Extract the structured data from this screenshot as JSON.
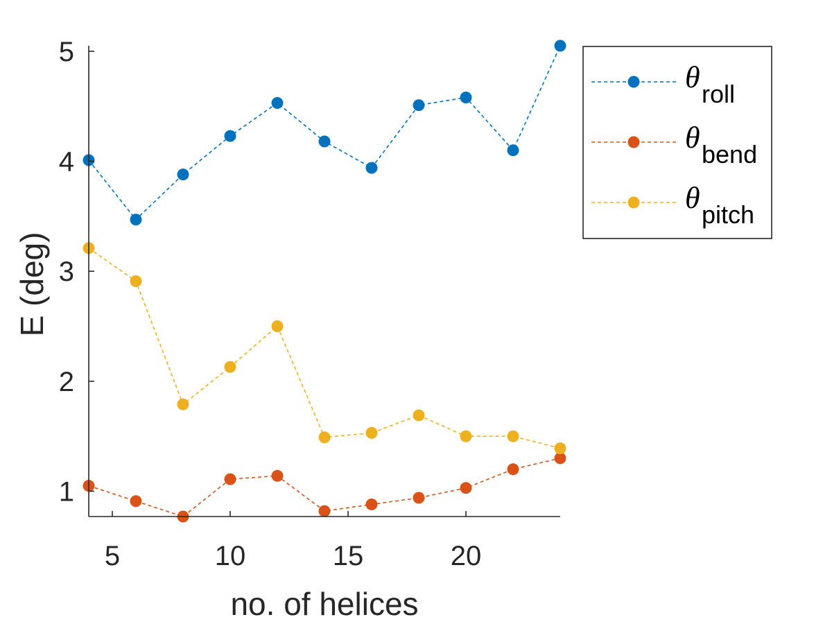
{
  "chart_data": {
    "type": "line",
    "xlabel": "no. of helices",
    "ylabel": "E (deg)",
    "xlim": [
      4,
      24
    ],
    "ylim": [
      0.77,
      5.05
    ],
    "xticks": [
      5,
      10,
      15,
      20
    ],
    "yticks": [
      1,
      2,
      3,
      4,
      5
    ],
    "grid": false,
    "legend_position": "outside-right-top",
    "line_style": "dashed",
    "marker": "filled-circle",
    "x": [
      4,
      6,
      8,
      10,
      12,
      14,
      16,
      18,
      20,
      22,
      24
    ],
    "series": [
      {
        "symbol": "θ",
        "subscript": "roll",
        "color": "#0072BD",
        "values": [
          4.01,
          3.47,
          3.88,
          4.23,
          4.53,
          4.18,
          3.94,
          4.51,
          4.58,
          4.1,
          5.05
        ]
      },
      {
        "symbol": "θ",
        "subscript": "bend",
        "color": "#D95319",
        "values": [
          1.05,
          0.91,
          0.77,
          1.11,
          1.14,
          0.82,
          0.88,
          0.94,
          1.03,
          1.2,
          1.3
        ]
      },
      {
        "symbol": "θ",
        "subscript": "pitch",
        "color": "#EDB120",
        "values": [
          3.21,
          2.91,
          1.79,
          2.13,
          2.5,
          1.49,
          1.53,
          1.69,
          1.5,
          1.5,
          1.39
        ]
      }
    ]
  },
  "colors": {
    "axis": "#262626",
    "legend_border": "#262626",
    "background": "#ffffff"
  }
}
